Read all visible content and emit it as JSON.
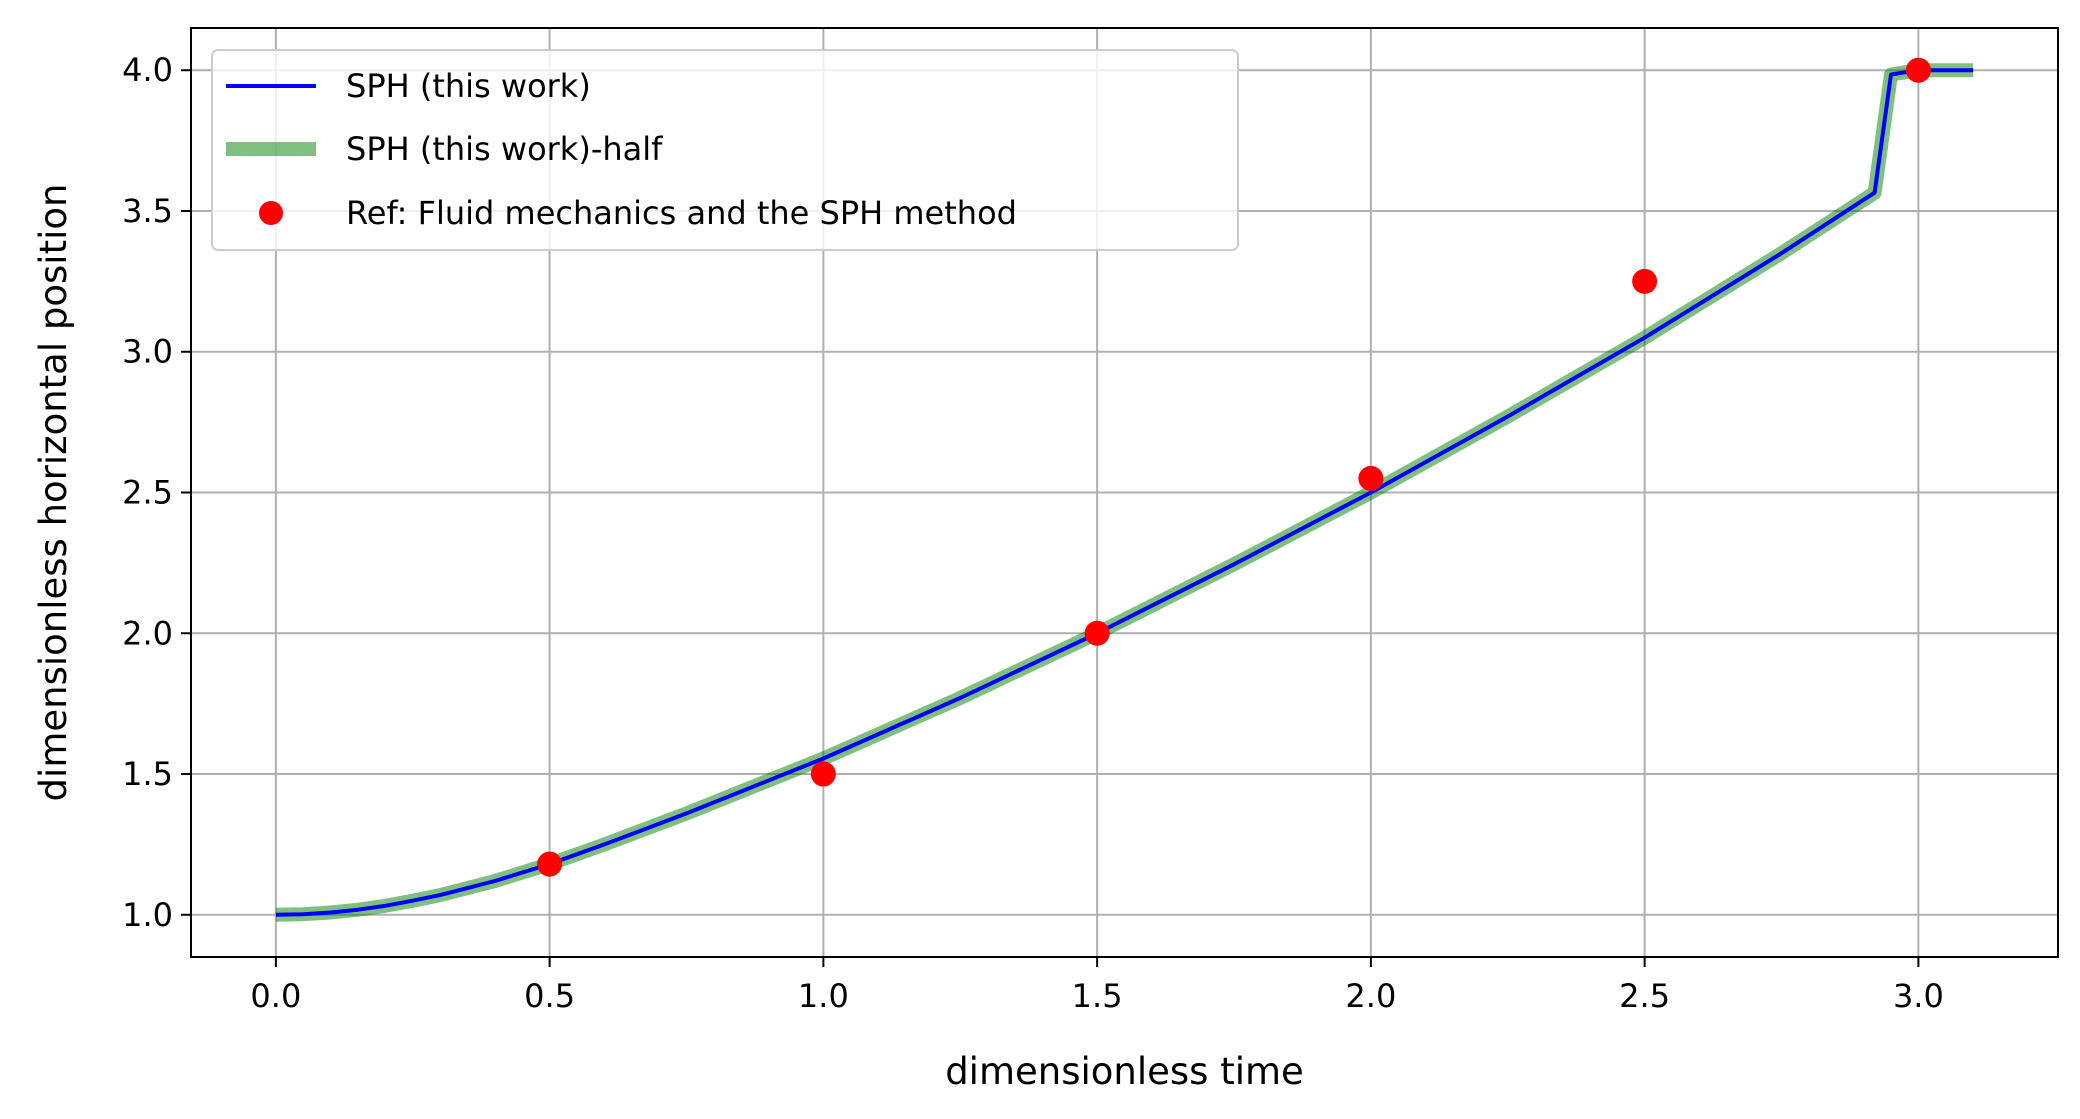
{
  "chart_data": {
    "type": "line",
    "xlabel": "dimensionless time",
    "ylabel": "dimensionless horizontal position",
    "xlim": [
      -0.155,
      3.255
    ],
    "ylim": [
      0.85,
      4.15
    ],
    "xticks": [
      0.0,
      0.5,
      1.0,
      1.5,
      2.0,
      2.5,
      3.0
    ],
    "xtick_labels": [
      "0.0",
      "0.5",
      "1.0",
      "1.5",
      "2.0",
      "2.5",
      "3.0"
    ],
    "yticks": [
      1.0,
      1.5,
      2.0,
      2.5,
      3.0,
      3.5,
      4.0
    ],
    "ytick_labels": [
      "1.0",
      "1.5",
      "2.0",
      "2.5",
      "3.0",
      "3.5",
      "4.0"
    ],
    "grid": true,
    "legend_position": "top-left",
    "series": [
      {
        "name": "SPH (this work)",
        "kind": "line",
        "color": "#0000ff",
        "x": [
          0.0,
          0.05,
          0.1,
          0.15,
          0.2,
          0.25,
          0.3,
          0.4,
          0.5,
          0.6,
          0.75,
          1.0,
          1.25,
          1.5,
          1.75,
          2.0,
          2.25,
          2.5,
          2.75,
          2.92,
          2.95,
          3.0,
          3.05,
          3.1
        ],
        "y": [
          1.0,
          1.002,
          1.008,
          1.018,
          1.032,
          1.05,
          1.07,
          1.12,
          1.18,
          1.25,
          1.36,
          1.555,
          1.77,
          2.0,
          2.245,
          2.5,
          2.77,
          3.05,
          3.35,
          3.565,
          3.985,
          4.0,
          4.0,
          4.0
        ]
      },
      {
        "name": "SPH (this work)-half",
        "kind": "line",
        "color": "#008000",
        "alpha": 0.5,
        "x": [
          0.0,
          0.05,
          0.1,
          0.15,
          0.2,
          0.25,
          0.3,
          0.4,
          0.5,
          0.6,
          0.75,
          1.0,
          1.25,
          1.5,
          1.75,
          2.0,
          2.25,
          2.5,
          2.75,
          2.92,
          2.95,
          3.0,
          3.05,
          3.1
        ],
        "y": [
          1.0,
          1.002,
          1.008,
          1.018,
          1.032,
          1.05,
          1.07,
          1.12,
          1.18,
          1.25,
          1.36,
          1.555,
          1.77,
          2.0,
          2.245,
          2.5,
          2.77,
          3.05,
          3.35,
          3.565,
          3.985,
          4.0,
          4.0,
          4.0
        ]
      },
      {
        "name": "Ref: Fluid mechanics and the SPH method",
        "kind": "scatter",
        "color": "#ff0000",
        "x": [
          0.5,
          1.0,
          1.5,
          2.0,
          2.5,
          3.0
        ],
        "y": [
          1.18,
          1.5,
          2.0,
          2.55,
          3.25,
          4.0
        ]
      }
    ]
  }
}
